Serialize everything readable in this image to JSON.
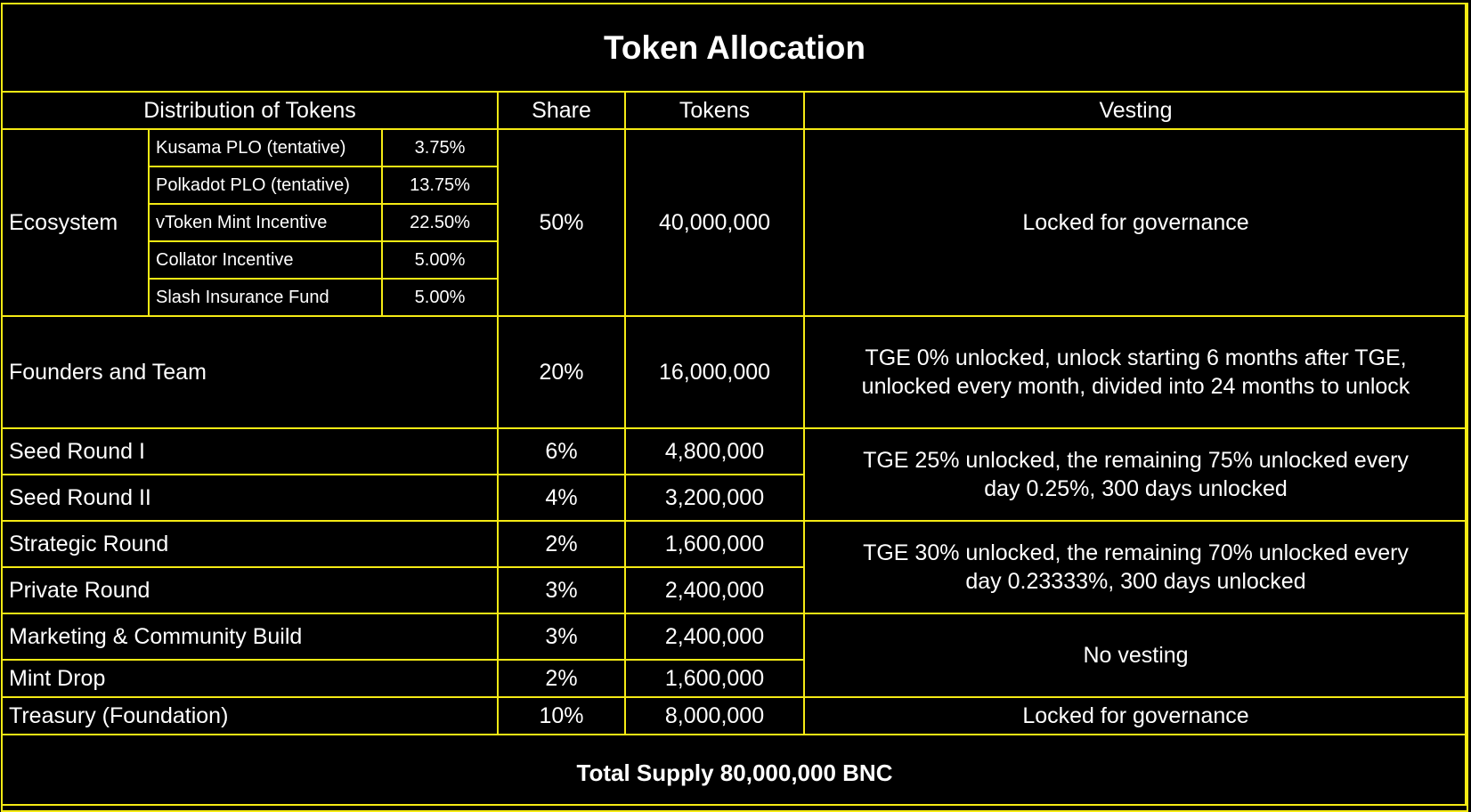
{
  "title": "Token Allocation",
  "headers": {
    "distribution": "Distribution of Tokens",
    "share": "Share",
    "tokens": "Tokens",
    "vesting": "Vesting"
  },
  "ecosystem": {
    "label": "Ecosystem",
    "share": "50%",
    "tokens": "40,000,000",
    "vesting": "Locked for governance",
    "items": [
      {
        "name": "Kusama PLO (tentative)",
        "pct": "3.75%"
      },
      {
        "name": "Polkadot PLO (tentative)",
        "pct": "13.75%"
      },
      {
        "name": "vToken Mint Incentive",
        "pct": "22.50%"
      },
      {
        "name": "Collator Incentive",
        "pct": "5.00%"
      },
      {
        "name": "Slash Insurance Fund",
        "pct": "5.00%"
      }
    ]
  },
  "founders": {
    "name": "Founders and Team",
    "share": "20%",
    "tokens": "16,000,000",
    "vesting_line1": "TGE 0% unlocked, unlock starting 6 months after TGE,",
    "vesting_line2": "unlocked every month, divided into 24 months to unlock"
  },
  "seed1": {
    "name": "Seed Round I",
    "share": "6%",
    "tokens": "4,800,000"
  },
  "seed2": {
    "name": "Seed Round II",
    "share": "4%",
    "tokens": "3,200,000"
  },
  "seed_vesting": {
    "line1": "TGE 25% unlocked, the remaining 75% unlocked every",
    "line2": "day 0.25%, 300 days unlocked"
  },
  "strategic": {
    "name": "Strategic Round",
    "share": "2%",
    "tokens": "1,600,000"
  },
  "private": {
    "name": "Private Round",
    "share": "3%",
    "tokens": "2,400,000"
  },
  "strategic_vesting": {
    "line1": "TGE 30% unlocked, the remaining 70% unlocked every",
    "line2": "day 0.23333%, 300 days unlocked"
  },
  "marketing": {
    "name": "Marketing & Community Build",
    "share": "3%",
    "tokens": "2,400,000"
  },
  "mintdrop": {
    "name": "Mint Drop",
    "share": "2%",
    "tokens": "1,600,000"
  },
  "no_vesting": "No vesting",
  "treasury": {
    "name": "Treasury (Foundation)",
    "share": "10%",
    "tokens": "8,000,000",
    "vesting": "Locked for governance"
  },
  "total": "Total Supply 80,000,000 BNC",
  "colors": {
    "background": "#000000",
    "border": "#f5ea14",
    "text": "#ffffff"
  }
}
